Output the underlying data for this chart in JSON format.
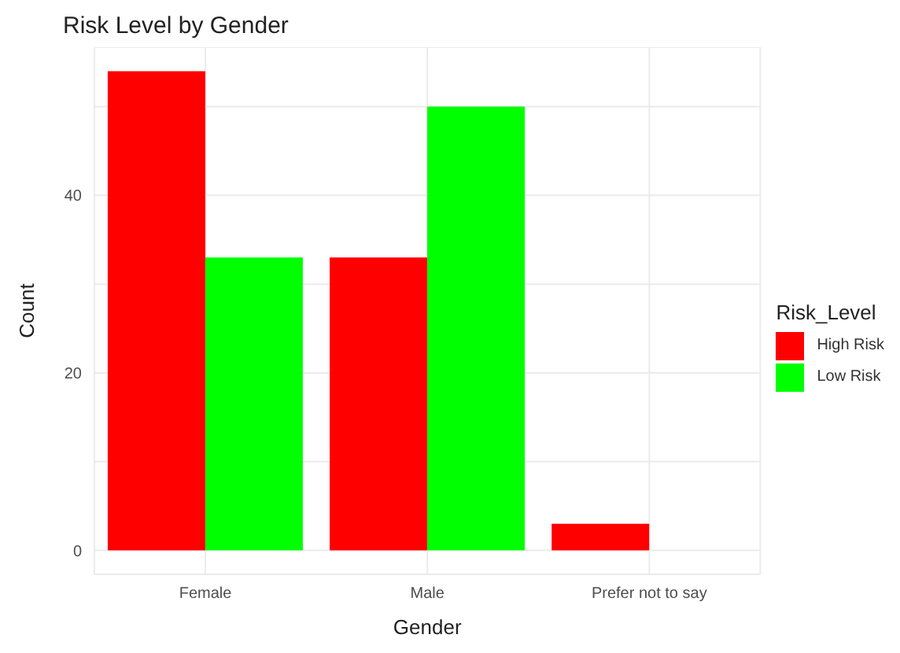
{
  "chart_data": {
    "type": "bar",
    "title": "Risk Level by Gender",
    "xlabel": "Gender",
    "ylabel": "Count",
    "legend_title": "Risk_Level",
    "categories": [
      "Female",
      "Male",
      "Prefer not to say"
    ],
    "series": [
      {
        "name": "High Risk",
        "color": "#ff0000",
        "values": [
          54,
          33,
          3
        ]
      },
      {
        "name": "Low Risk",
        "color": "#00ff00",
        "values": [
          33,
          50,
          null
        ]
      }
    ],
    "ylim": [
      -2.7,
      56.7
    ],
    "yticks": [
      0,
      {
        "value": 10,
        "label": null
      },
      20,
      {
        "value": 30,
        "label": null
      },
      40,
      {
        "value": 50,
        "label": null
      }
    ],
    "grid": true,
    "legend": "right"
  }
}
